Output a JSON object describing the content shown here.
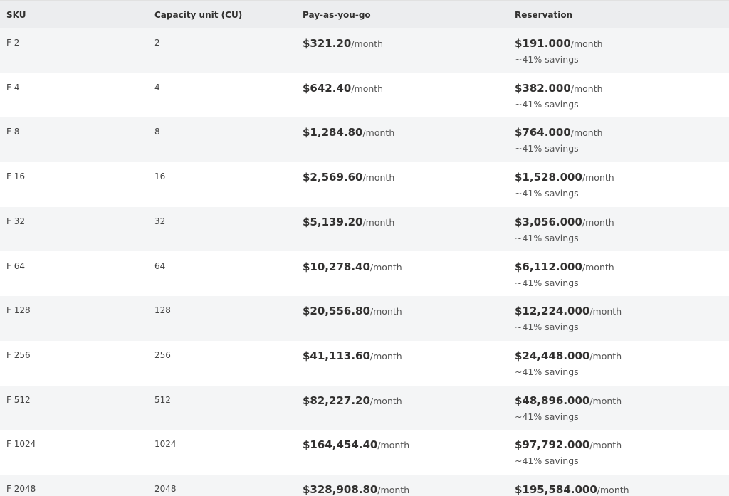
{
  "table": {
    "headers": [
      "SKU",
      "Capacity unit (CU)",
      "Pay-as-you-go",
      "Reservation"
    ],
    "rows": [
      {
        "sku": "F 2",
        "cu": "2",
        "payg": {
          "price": "$321.20",
          "unit": "/month"
        },
        "reservation": {
          "price": "$191.000",
          "unit": "/month",
          "note": "~41% savings"
        }
      },
      {
        "sku": "F 4",
        "cu": "4",
        "payg": {
          "price": "$642.40",
          "unit": "/month"
        },
        "reservation": {
          "price": "$382.000",
          "unit": "/month",
          "note": "~41% savings"
        }
      },
      {
        "sku": "F 8",
        "cu": "8",
        "payg": {
          "price": "$1,284.80",
          "unit": "/month"
        },
        "reservation": {
          "price": "$764.000",
          "unit": "/month",
          "note": "~41% savings"
        }
      },
      {
        "sku": "F 16",
        "cu": "16",
        "payg": {
          "price": "$2,569.60",
          "unit": "/month"
        },
        "reservation": {
          "price": "$1,528.000",
          "unit": "/month",
          "note": "~41% savings"
        }
      },
      {
        "sku": "F 32",
        "cu": "32",
        "payg": {
          "price": "$5,139.20",
          "unit": "/month"
        },
        "reservation": {
          "price": "$3,056.000",
          "unit": "/month",
          "note": "~41% savings"
        }
      },
      {
        "sku": "F 64",
        "cu": "64",
        "payg": {
          "price": "$10,278.40",
          "unit": "/month"
        },
        "reservation": {
          "price": "$6,112.000",
          "unit": "/month",
          "note": "~41% savings"
        }
      },
      {
        "sku": "F 128",
        "cu": "128",
        "payg": {
          "price": "$20,556.80",
          "unit": "/month"
        },
        "reservation": {
          "price": "$12,224.000",
          "unit": "/month",
          "note": "~41% savings"
        }
      },
      {
        "sku": "F 256",
        "cu": "256",
        "payg": {
          "price": "$41,113.60",
          "unit": "/month"
        },
        "reservation": {
          "price": "$24,448.000",
          "unit": "/month",
          "note": "~41% savings"
        }
      },
      {
        "sku": "F 512",
        "cu": "512",
        "payg": {
          "price": "$82,227.20",
          "unit": "/month"
        },
        "reservation": {
          "price": "$48,896.000",
          "unit": "/month",
          "note": "~41% savings"
        }
      },
      {
        "sku": "F 1024",
        "cu": "1024",
        "payg": {
          "price": "$164,454.40",
          "unit": "/month"
        },
        "reservation": {
          "price": "$97,792.000",
          "unit": "/month",
          "note": "~41% savings"
        }
      },
      {
        "sku": "F 2048",
        "cu": "2048",
        "payg": {
          "price": "$328,908.80",
          "unit": "/month"
        },
        "reservation": {
          "price": "$195,584.000",
          "unit": "/month"
        }
      }
    ]
  }
}
